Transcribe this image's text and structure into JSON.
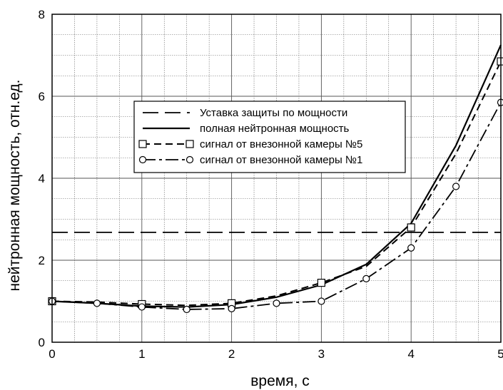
{
  "chart_data": {
    "type": "line",
    "title": "",
    "xlabel": "время, с",
    "ylabel": "нейтронная мощность, отн.ед.",
    "xlim": [
      0,
      5
    ],
    "ylim": [
      0,
      8
    ],
    "x_ticks": [
      0,
      1,
      2,
      3,
      4,
      5
    ],
    "y_ticks": [
      0,
      2,
      4,
      6,
      8
    ],
    "x_minor_step": 0.25,
    "y_minor_step": 0.5,
    "grid": true,
    "legend_position": "center",
    "series": [
      {
        "name": "Уставка защиты по мощности",
        "style": "long-dash",
        "color": "#000000",
        "x": [
          0,
          5
        ],
        "y": [
          2.68,
          2.68
        ]
      },
      {
        "name": "полная нейтронная мощность",
        "style": "solid",
        "color": "#000000",
        "x": [
          0,
          0.5,
          1,
          1.5,
          2,
          2.5,
          3,
          3.5,
          4,
          4.5,
          5
        ],
        "y": [
          1.0,
          0.95,
          0.88,
          0.86,
          0.92,
          1.1,
          1.4,
          1.9,
          2.9,
          4.8,
          7.25
        ]
      },
      {
        "name": "сигнал от внезонной камеры №5",
        "style": "short-dash",
        "marker": "square",
        "color": "#000000",
        "x": [
          0,
          0.5,
          1,
          1.5,
          2,
          2.5,
          3,
          3.5,
          4,
          4.5,
          5
        ],
        "y": [
          1.0,
          0.98,
          0.93,
          0.9,
          0.95,
          1.13,
          1.45,
          1.85,
          2.8,
          4.6,
          6.85
        ],
        "marker_x": [
          0,
          1,
          2,
          3,
          4,
          5
        ],
        "marker_y": [
          1.0,
          0.93,
          0.95,
          1.45,
          2.8,
          6.85
        ]
      },
      {
        "name": "сигнал от внезонной камеры №1",
        "style": "dash-dot",
        "marker": "circle",
        "color": "#000000",
        "x": [
          0,
          0.5,
          1,
          1.5,
          2,
          2.5,
          3,
          3.5,
          4,
          4.5,
          5
        ],
        "y": [
          1.0,
          0.95,
          0.86,
          0.8,
          0.82,
          0.95,
          1.0,
          1.55,
          2.3,
          3.8,
          5.85
        ],
        "marker_x": [
          0,
          0.5,
          1,
          1.5,
          2,
          2.5,
          3,
          3.5,
          4,
          4.5,
          5
        ],
        "marker_y": [
          1.0,
          0.95,
          0.86,
          0.8,
          0.82,
          0.95,
          1.0,
          1.55,
          2.3,
          3.8,
          5.85
        ]
      }
    ]
  }
}
